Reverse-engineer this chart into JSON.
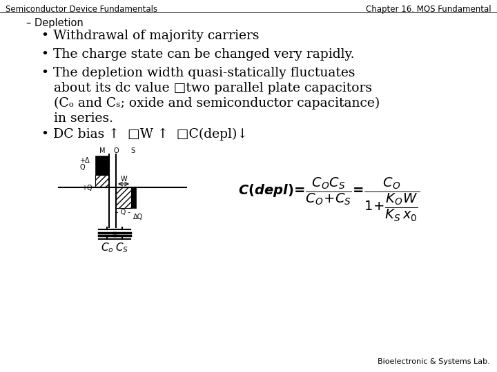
{
  "title_left": "Semiconductor Device Fundamentals",
  "title_right": "Chapter 16. MOS Fundamental",
  "subtitle": "– Depletion",
  "footer": "Bioelectronic & Systems Lab.",
  "bg_color": "#ffffff",
  "text_color": "#000000"
}
